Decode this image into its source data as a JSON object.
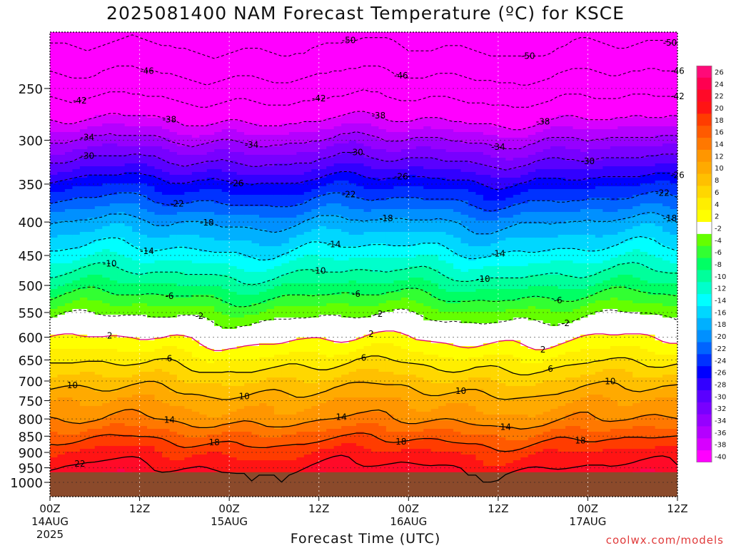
{
  "title": "2025081400 NAM Forecast Temperature (ºC) for KSCE",
  "credit": "coolwx.com/models",
  "chart_data": {
    "type": "heatmap",
    "title": "2025081400 NAM Forecast Temperature (ºC) for KSCE",
    "xlabel": "Forecast Time (UTC)",
    "ylabel": "",
    "x_hours": [
      0,
      12,
      24,
      36,
      48,
      60,
      72,
      84
    ],
    "x_ticks": [
      {
        "l1": "00Z",
        "l2": "14AUG",
        "l3": "2025"
      },
      {
        "l1": "12Z",
        "l2": "",
        "l3": ""
      },
      {
        "l1": "00Z",
        "l2": "15AUG",
        "l3": ""
      },
      {
        "l1": "12Z",
        "l2": "",
        "l3": ""
      },
      {
        "l1": "00Z",
        "l2": "16AUG",
        "l3": ""
      },
      {
        "l1": "12Z",
        "l2": "",
        "l3": ""
      },
      {
        "l1": "00Z",
        "l2": "17AUG",
        "l3": ""
      },
      {
        "l1": "12Z",
        "l2": "",
        "l3": ""
      }
    ],
    "y_ticks": [
      250,
      300,
      350,
      400,
      450,
      500,
      550,
      600,
      650,
      700,
      750,
      800,
      850,
      900,
      950,
      1000
    ],
    "pressure_range_hpa": [
      205,
      1030
    ],
    "surface_pressure_hpa": 965,
    "colors": {
      "below_ground": "#8b4a2b",
      "missing": "#ffffff"
    },
    "colorbar": {
      "labels": [
        "26",
        "24",
        "22",
        "20",
        "18",
        "16",
        "14",
        "12",
        "10",
        "8",
        "6",
        "4",
        "2",
        "-2",
        "-4",
        "-6",
        "-8",
        "-10",
        "-12",
        "-14",
        "-16",
        "-18",
        "-20",
        "-22",
        "-24",
        "-26",
        "-28",
        "-30",
        "-32",
        "-34",
        "-36",
        "-38",
        "-40"
      ],
      "colors": [
        "#ff0a78",
        "#ff0050",
        "#ff0a28",
        "#ff1414",
        "#ff3c00",
        "#ff5a00",
        "#ff7800",
        "#ff9600",
        "#ffaa00",
        "#ffc000",
        "#ffd700",
        "#ffee00",
        "#ffff00",
        "#ffffff",
        "#64ff00",
        "#32ff32",
        "#00ff64",
        "#00ff9b",
        "#00ffcc",
        "#00ffff",
        "#00d7ff",
        "#00b0ff",
        "#0090ff",
        "#0064ff",
        "#0032ff",
        "#0000ff",
        "#3200ff",
        "#5a00ff",
        "#7800ff",
        "#9600ff",
        "#b400ff",
        "#d700ff",
        "#ff00ff"
      ]
    },
    "temperature_profile": {
      "pressure_hpa": [
        200,
        250,
        300,
        350,
        400,
        450,
        500,
        550,
        600,
        650,
        700,
        750,
        800,
        850,
        900,
        950,
        975
      ],
      "temp_c": [
        -53,
        -44,
        -34,
        -25,
        -18,
        -13,
        -8,
        -3,
        1.5,
        5,
        8.5,
        11.5,
        13.5,
        17,
        20,
        22,
        23
      ]
    },
    "contours": [
      {
        "label": "-50",
        "style": "dashed",
        "labels_at": [
          [
            40,
            -50
          ],
          [
            64,
            -50
          ],
          [
            83,
            -50
          ]
        ]
      },
      {
        "label": "-46",
        "style": "dashed",
        "labels_at": [
          [
            13,
            -46
          ],
          [
            47,
            -46
          ],
          [
            84,
            -46
          ]
        ]
      },
      {
        "label": "-42",
        "style": "dashed",
        "labels_at": [
          [
            4,
            -42
          ],
          [
            36,
            -42
          ],
          [
            84,
            -42
          ]
        ]
      },
      {
        "label": "-38",
        "style": "dashed",
        "labels_at": [
          [
            16,
            -38
          ],
          [
            44,
            -38
          ],
          [
            66,
            -38
          ]
        ]
      },
      {
        "label": "-34",
        "style": "dashed",
        "labels_at": [
          [
            5,
            -34
          ],
          [
            27,
            -34
          ],
          [
            60,
            -34
          ]
        ]
      },
      {
        "label": "-30",
        "style": "dashed",
        "labels_at": [
          [
            5,
            -30
          ],
          [
            41,
            -30
          ],
          [
            72,
            -30
          ]
        ]
      },
      {
        "label": "-26",
        "style": "dashed",
        "labels_at": [
          [
            25,
            -26
          ],
          [
            47,
            -26
          ],
          [
            84,
            -26
          ]
        ]
      },
      {
        "label": "-22",
        "style": "dashed",
        "labels_at": [
          [
            17,
            -22
          ],
          [
            40,
            -22
          ],
          [
            82,
            -22
          ]
        ]
      },
      {
        "label": "-18",
        "style": "dashed",
        "labels_at": [
          [
            21,
            -18
          ],
          [
            45,
            -18
          ],
          [
            83,
            -18
          ]
        ]
      },
      {
        "label": "-14",
        "style": "dashed",
        "labels_at": [
          [
            13,
            -14
          ],
          [
            38,
            -14
          ],
          [
            60,
            -14
          ]
        ]
      },
      {
        "label": "-10",
        "style": "dashed",
        "labels_at": [
          [
            8,
            -10
          ],
          [
            36,
            -10
          ],
          [
            58,
            -10
          ]
        ]
      },
      {
        "label": "-6",
        "style": "dashed",
        "labels_at": [
          [
            16,
            -6
          ],
          [
            41,
            -6
          ],
          [
            68,
            -6
          ]
        ]
      },
      {
        "label": "-2",
        "style": "dashed",
        "labels_at": [
          [
            20,
            -2
          ],
          [
            44,
            -2
          ],
          [
            69,
            -2
          ]
        ]
      },
      {
        "label": "2",
        "style": "solid",
        "labels_at": [
          [
            8,
            2
          ],
          [
            43,
            2
          ],
          [
            66,
            2
          ]
        ]
      },
      {
        "label": "6",
        "style": "solid",
        "labels_at": [
          [
            16,
            6
          ],
          [
            42,
            6
          ],
          [
            67,
            6
          ]
        ]
      },
      {
        "label": "10",
        "style": "solid",
        "labels_at": [
          [
            3,
            10
          ],
          [
            26,
            10
          ],
          [
            55,
            10
          ],
          [
            75,
            10
          ]
        ]
      },
      {
        "label": "14",
        "style": "solid",
        "labels_at": [
          [
            16,
            14
          ],
          [
            39,
            14
          ],
          [
            61,
            14
          ]
        ]
      },
      {
        "label": "18",
        "style": "solid",
        "labels_at": [
          [
            22,
            18
          ],
          [
            47,
            18
          ],
          [
            71,
            18
          ]
        ]
      },
      {
        "label": "22",
        "style": "solid",
        "labels_at": [
          [
            4,
            22
          ]
        ]
      }
    ]
  }
}
